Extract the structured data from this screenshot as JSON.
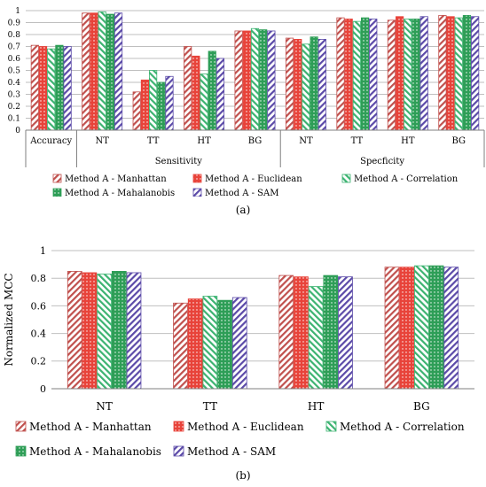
{
  "colors": {
    "manhattan": "#c0504d",
    "euclidean": "#e8433a",
    "correlation": "#3cb371",
    "mahalanobis": "#2e9e57",
    "sam": "#5b4aa8",
    "grid": "#bfbfbf",
    "axis": "#7f7f7f",
    "text": "#000000"
  },
  "panel_labels": {
    "a": "(a)",
    "b": "(b)"
  },
  "chart_data": [
    {
      "id": "a",
      "type": "bar",
      "ylim": [
        0,
        1
      ],
      "yticks": [
        "0",
        "0.1",
        "0.2",
        "0.3",
        "0.4",
        "0.5",
        "0.6",
        "0.7",
        "0.8",
        "0.9",
        "1"
      ],
      "ylabel": "",
      "grid": true,
      "categories": [
        "Accuracy",
        "NT",
        "TT",
        "HT",
        "BG",
        "NT",
        "TT",
        "HT",
        "BG"
      ],
      "groups": [
        {
          "label": "",
          "start": 0,
          "end": 0
        },
        {
          "label": "Sensitivity",
          "start": 1,
          "end": 4
        },
        {
          "label": "Specficity",
          "start": 5,
          "end": 8
        }
      ],
      "series": [
        {
          "name": "Method A - Manhattan",
          "key": "manhattan",
          "values": [
            0.71,
            0.98,
            0.32,
            0.7,
            0.83,
            0.77,
            0.94,
            0.92,
            0.96
          ]
        },
        {
          "name": "Method A - Euclidean",
          "key": "euclidean",
          "values": [
            0.7,
            0.98,
            0.42,
            0.62,
            0.83,
            0.76,
            0.93,
            0.95,
            0.95
          ]
        },
        {
          "name": "Method A - Correlation",
          "key": "correlation",
          "values": [
            0.68,
            0.99,
            0.5,
            0.47,
            0.85,
            0.72,
            0.91,
            0.93,
            0.94
          ]
        },
        {
          "name": "Method A - Mahalanobis",
          "key": "mahalanobis",
          "values": [
            0.71,
            0.97,
            0.4,
            0.66,
            0.84,
            0.78,
            0.94,
            0.93,
            0.96
          ]
        },
        {
          "name": "Method A - SAM",
          "key": "sam",
          "values": [
            0.7,
            0.98,
            0.45,
            0.6,
            0.83,
            0.76,
            0.93,
            0.95,
            0.95
          ]
        }
      ],
      "legend": "bottom"
    },
    {
      "id": "b",
      "type": "bar",
      "ylim": [
        0,
        1
      ],
      "yticks": [
        "0",
        "0.2",
        "0.4",
        "0.6",
        "0.8",
        "1"
      ],
      "ylabel": "Normalized MCC",
      "grid": true,
      "categories": [
        "NT",
        "TT",
        "HT",
        "BG"
      ],
      "series": [
        {
          "name": "Method A - Manhattan",
          "key": "manhattan",
          "values": [
            0.85,
            0.62,
            0.82,
            0.88
          ]
        },
        {
          "name": "Method A - Euclidean",
          "key": "euclidean",
          "values": [
            0.84,
            0.65,
            0.81,
            0.88
          ]
        },
        {
          "name": "Method A - Correlation",
          "key": "correlation",
          "values": [
            0.83,
            0.67,
            0.74,
            0.89
          ]
        },
        {
          "name": "Method A - Mahalanobis",
          "key": "mahalanobis",
          "values": [
            0.85,
            0.64,
            0.82,
            0.89
          ]
        },
        {
          "name": "Method A - SAM",
          "key": "sam",
          "values": [
            0.84,
            0.66,
            0.81,
            0.88
          ]
        }
      ],
      "legend": "bottom"
    }
  ]
}
